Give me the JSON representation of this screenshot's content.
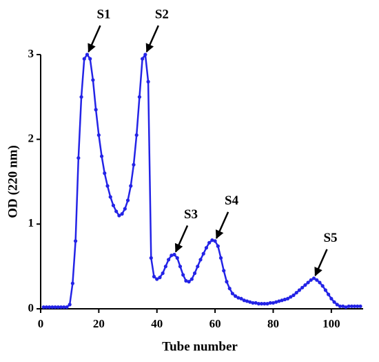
{
  "chart_data": {
    "type": "line",
    "xlabel": "Tube number",
    "ylabel": "OD (220 nm)",
    "color": "#2323e6",
    "x": [
      1,
      2,
      3,
      4,
      5,
      6,
      7,
      8,
      9,
      10,
      11,
      12,
      13,
      14,
      15,
      16,
      17,
      18,
      19,
      20,
      21,
      22,
      23,
      24,
      25,
      26,
      27,
      28,
      29,
      30,
      31,
      32,
      33,
      34,
      35,
      36,
      37,
      38,
      39,
      40,
      41,
      42,
      43,
      44,
      45,
      46,
      47,
      48,
      49,
      50,
      51,
      52,
      53,
      54,
      55,
      56,
      57,
      58,
      59,
      60,
      61,
      62,
      63,
      64,
      65,
      66,
      67,
      68,
      69,
      70,
      71,
      72,
      73,
      74,
      75,
      76,
      77,
      78,
      79,
      80,
      81,
      82,
      83,
      84,
      85,
      86,
      87,
      88,
      89,
      90,
      91,
      92,
      93,
      94,
      95,
      96,
      97,
      98,
      99,
      100,
      101,
      102,
      103,
      104,
      105,
      106,
      107,
      108,
      109,
      110
    ],
    "values": [
      0.02,
      0.02,
      0.02,
      0.02,
      0.02,
      0.02,
      0.02,
      0.02,
      0.02,
      0.05,
      0.3,
      0.8,
      1.78,
      2.5,
      2.95,
      3.0,
      2.95,
      2.7,
      2.35,
      2.05,
      1.8,
      1.6,
      1.45,
      1.32,
      1.22,
      1.15,
      1.1,
      1.12,
      1.18,
      1.28,
      1.45,
      1.7,
      2.05,
      2.5,
      2.95,
      3.0,
      2.68,
      0.6,
      0.38,
      0.35,
      0.37,
      0.42,
      0.5,
      0.58,
      0.63,
      0.64,
      0.6,
      0.5,
      0.4,
      0.33,
      0.32,
      0.35,
      0.42,
      0.5,
      0.58,
      0.65,
      0.72,
      0.78,
      0.81,
      0.8,
      0.74,
      0.6,
      0.45,
      0.32,
      0.24,
      0.18,
      0.15,
      0.13,
      0.12,
      0.1,
      0.09,
      0.08,
      0.07,
      0.07,
      0.06,
      0.06,
      0.06,
      0.06,
      0.07,
      0.07,
      0.08,
      0.09,
      0.1,
      0.11,
      0.12,
      0.14,
      0.16,
      0.19,
      0.22,
      0.25,
      0.28,
      0.31,
      0.34,
      0.36,
      0.34,
      0.31,
      0.27,
      0.22,
      0.17,
      0.12,
      0.08,
      0.05,
      0.03,
      0.03,
      0.02,
      0.03,
      0.03,
      0.03,
      0.03,
      0.03
    ],
    "xlim": [
      0,
      110
    ],
    "ylim": [
      0,
      3
    ],
    "xticks": [
      0,
      20,
      40,
      60,
      80,
      100
    ],
    "yticks": [
      0,
      1,
      2,
      3
    ],
    "annotations": [
      {
        "text": "S1",
        "x": 16,
        "y": 3.0
      },
      {
        "text": "S2",
        "x": 36,
        "y": 3.0
      },
      {
        "text": "S3",
        "x": 46,
        "y": 0.64
      },
      {
        "text": "S4",
        "x": 60,
        "y": 0.8
      },
      {
        "text": "S5",
        "x": 94,
        "y": 0.36
      }
    ]
  }
}
